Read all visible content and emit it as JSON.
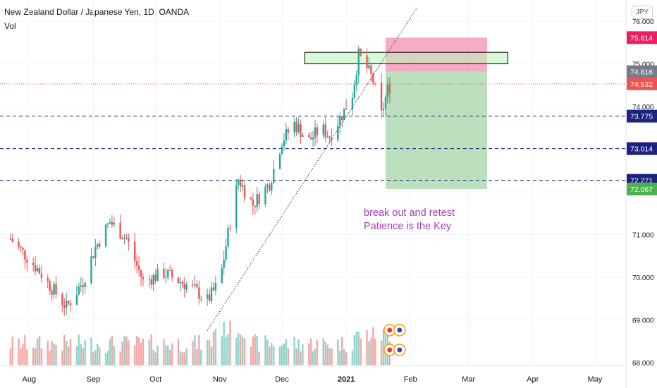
{
  "header": {
    "symbol_title": "New Zealand Dollar / Japanese Yen, 1D, OANDA",
    "volume_label": "Vol",
    "currency_button": "JPY"
  },
  "annotation": {
    "line1": "break out and retest",
    "line2": "Patience is the Key"
  },
  "colors": {
    "up": "#26a69a",
    "down": "#ef5350",
    "vol_up": "#8fd3c9",
    "vol_down": "#f3a7a5",
    "level_line": "#1a237e",
    "note": "#a83cbc",
    "stop_zone": "#f48fb1",
    "target_zone": "#a5d6a7",
    "resistance_box": "#b9f6b9"
  },
  "chart_data": {
    "type": "candlestick",
    "title": "New Zealand Dollar / Japanese Yen, 1D, OANDA",
    "indicator": "Vol",
    "y_axis": {
      "ticks": [
        "68.000",
        "69.000",
        "70.000",
        "71.000",
        "74.000",
        "75.000",
        "76.000"
      ],
      "ylim": [
        67.85,
        76.4
      ]
    },
    "x_axis": {
      "ticks": [
        "Aug",
        "Sep",
        "Oct",
        "Nov",
        "Dec",
        "2021",
        "Feb",
        "Mar",
        "Apr",
        "May"
      ]
    },
    "price_labels": [
      {
        "value": "75.614",
        "kind": "stop"
      },
      {
        "value": "74.816",
        "kind": "entry"
      },
      {
        "value": "74.532",
        "kind": "last"
      },
      {
        "value": "73.775",
        "kind": "level"
      },
      {
        "value": "73.014",
        "kind": "level"
      },
      {
        "value": "72.271",
        "kind": "level"
      },
      {
        "value": "72.067",
        "kind": "target"
      }
    ],
    "horizontal_levels": [
      73.775,
      73.014,
      72.271
    ],
    "last_price": 74.532,
    "resistance_zone": {
      "low": 75.0,
      "high": 75.27,
      "from": "2020-12-12",
      "to": "2021-03-20"
    },
    "trade": {
      "entry": 74.816,
      "stop": 75.614,
      "target": 72.067,
      "from": "2021-01-20",
      "to": "2021-03-10"
    },
    "trendline": {
      "from": {
        "date": "2020-10-26",
        "price": 68.75
      },
      "to": {
        "date": "2021-02-04",
        "price": 76.3
      }
    },
    "series": [
      {
        "name": "price_path",
        "points": [
          [
            "2020-07-23",
            70.9
          ],
          [
            "2020-08-05",
            70.2
          ],
          [
            "2020-08-19",
            69.3
          ],
          [
            "2020-08-27",
            69.9
          ],
          [
            "2020-09-02",
            70.7
          ],
          [
            "2020-09-09",
            71.3
          ],
          [
            "2020-09-17",
            70.9
          ],
          [
            "2020-09-25",
            69.9
          ],
          [
            "2020-10-05",
            70.1
          ],
          [
            "2020-10-13",
            69.9
          ],
          [
            "2020-10-20",
            69.7
          ],
          [
            "2020-10-26",
            69.45
          ],
          [
            "2020-11-01",
            69.9
          ],
          [
            "2020-11-06",
            71.3
          ],
          [
            "2020-11-10",
            72.3
          ],
          [
            "2020-11-17",
            71.7
          ],
          [
            "2020-11-25",
            72.2
          ],
          [
            "2020-12-01",
            73.2
          ],
          [
            "2020-12-07",
            73.6
          ],
          [
            "2020-12-14",
            73.2
          ],
          [
            "2020-12-20",
            73.5
          ],
          [
            "2020-12-24",
            73.3
          ],
          [
            "2020-12-31",
            73.9
          ],
          [
            "2021-01-04",
            74.3
          ],
          [
            "2021-01-07",
            75.2
          ],
          [
            "2021-01-11",
            74.9
          ],
          [
            "2021-01-14",
            74.6
          ],
          [
            "2021-01-18",
            73.8
          ],
          [
            "2021-01-21",
            74.4
          ],
          [
            "2021-01-23",
            74.53
          ]
        ]
      }
    ]
  }
}
